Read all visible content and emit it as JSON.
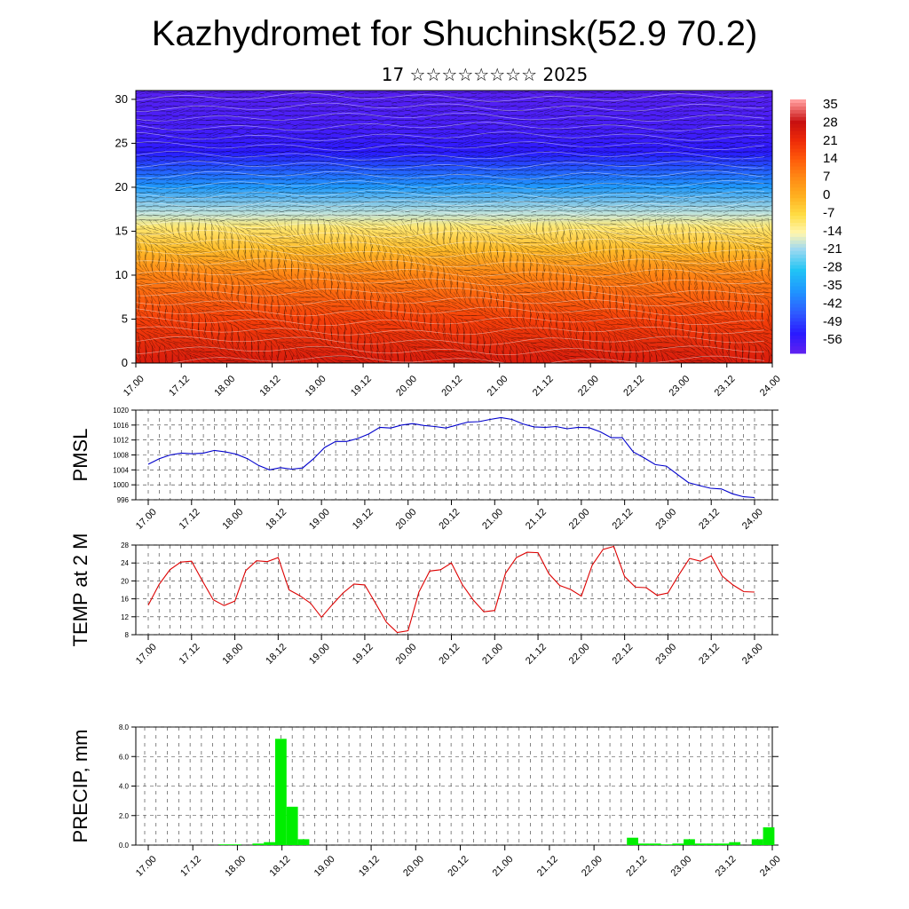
{
  "header": {
    "title": "Kazhydromet for Shuchinsk(52.9 70.2)",
    "subtitle": "17 ☆☆☆☆☆☆☆☆ 2025"
  },
  "time_labels": [
    "17.00",
    "17.12",
    "18.00",
    "18.12",
    "19.00",
    "19.12",
    "20.00",
    "20.12",
    "21.00",
    "21.12",
    "22.00",
    "22.12",
    "23.00",
    "23.12",
    "24.00"
  ],
  "chart_data": [
    {
      "type": "heatmap",
      "title": "",
      "xlabel": "",
      "ylabel": "",
      "x": [
        "17.00",
        "17.12",
        "18.00",
        "18.12",
        "19.00",
        "19.12",
        "20.00",
        "20.12",
        "21.00",
        "21.12",
        "22.00",
        "22.12",
        "23.00",
        "23.12",
        "24.00"
      ],
      "y_ticks": [
        0,
        5,
        10,
        15,
        20,
        25,
        30
      ],
      "ylim": [
        0,
        31
      ],
      "colorbar_labels": [
        "35",
        "28",
        "21",
        "14",
        "7",
        "0",
        "-7",
        "-14",
        "-21",
        "-28",
        "-35",
        "-42",
        "-49",
        "-56"
      ],
      "temperature_profile": [
        {
          "height": 0,
          "value": 25
        },
        {
          "height": 5,
          "value": 18
        },
        {
          "height": 10,
          "value": 8
        },
        {
          "height": 13,
          "value": -2
        },
        {
          "height": 15.5,
          "value": -10
        },
        {
          "height": 17,
          "value": -18
        },
        {
          "height": 20,
          "value": -35
        },
        {
          "height": 24,
          "value": -52
        },
        {
          "height": 27,
          "value": -56
        },
        {
          "height": 31,
          "value": -58
        }
      ],
      "overlay": "wind barbs and isotherm contours"
    },
    {
      "type": "line",
      "ylabel": "PMSL",
      "ylim": [
        996,
        1020
      ],
      "y_ticks": [
        "996",
        "1000",
        "1004",
        "1008",
        "1012",
        "1016",
        "1020"
      ],
      "color": "#0000cc",
      "series": [
        {
          "values": [
            1005.5,
            1007,
            1008,
            1008.5,
            1008.3,
            1008.5,
            1009.2,
            1008.8,
            1008.2,
            1007,
            1005.2,
            1004,
            1004.6,
            1004.2,
            1004.5,
            1007,
            1010,
            1011.6,
            1011.6,
            1012.4,
            1013.6,
            1015.4,
            1015.2,
            1016,
            1016.4,
            1015.9,
            1015.6,
            1015.2,
            1016,
            1016.8,
            1016.9,
            1017.5,
            1018,
            1017.5,
            1016.3,
            1015.5,
            1015.4,
            1015.6,
            1015,
            1015.4,
            1015.3,
            1014.2,
            1012.6,
            1012.6,
            1008.8,
            1007.2,
            1005.4,
            1005,
            1002.8,
            1000.6,
            999.8,
            999.1,
            998.9,
            997.6,
            996.8,
            996.6
          ]
        }
      ]
    },
    {
      "type": "line",
      "ylabel": "TEMP at 2 M",
      "ylim": [
        8,
        28
      ],
      "y_ticks": [
        "8",
        "12",
        "16",
        "20",
        "24",
        "28"
      ],
      "color": "#dd0000",
      "series": [
        {
          "values": [
            14.6,
            19.2,
            22.5,
            24.2,
            24.4,
            20,
            15.8,
            14.5,
            15.5,
            22.3,
            24.5,
            24.3,
            25.2,
            18,
            16.7,
            15,
            11.9,
            14.7,
            17.3,
            19.3,
            19.1,
            15,
            10.8,
            8.5,
            8.9,
            17.5,
            22.2,
            22.5,
            24,
            19.2,
            15.8,
            13.1,
            13.4,
            21.7,
            25.2,
            26.4,
            26.3,
            21.6,
            19,
            18.1,
            16.6,
            23.5,
            27,
            27.7,
            21,
            18.6,
            18.5,
            16.8,
            17.3,
            21.3,
            25,
            24.4,
            25.6,
            21.1,
            19.1,
            17.6,
            17.5
          ]
        }
      ]
    },
    {
      "type": "bar",
      "ylabel": "PRECIP, mm",
      "ylim": [
        0,
        8
      ],
      "y_ticks": [
        "0.0",
        "2.0",
        "4.0",
        "6.0",
        "8.0"
      ],
      "color": "#00ee00",
      "values": [
        0,
        0,
        0,
        0,
        0,
        0,
        0,
        0.05,
        0.05,
        0,
        0.1,
        0.2,
        7.2,
        2.6,
        0.4,
        0,
        0,
        0,
        0,
        0,
        0,
        0,
        0,
        0,
        0,
        0,
        0,
        0,
        0,
        0,
        0,
        0,
        0,
        0,
        0,
        0,
        0,
        0,
        0,
        0,
        0,
        0,
        0,
        0.5,
        0.1,
        0.1,
        0.05,
        0.1,
        0.4,
        0.1,
        0.1,
        0.1,
        0.2,
        0,
        0.4,
        1.2
      ]
    }
  ]
}
